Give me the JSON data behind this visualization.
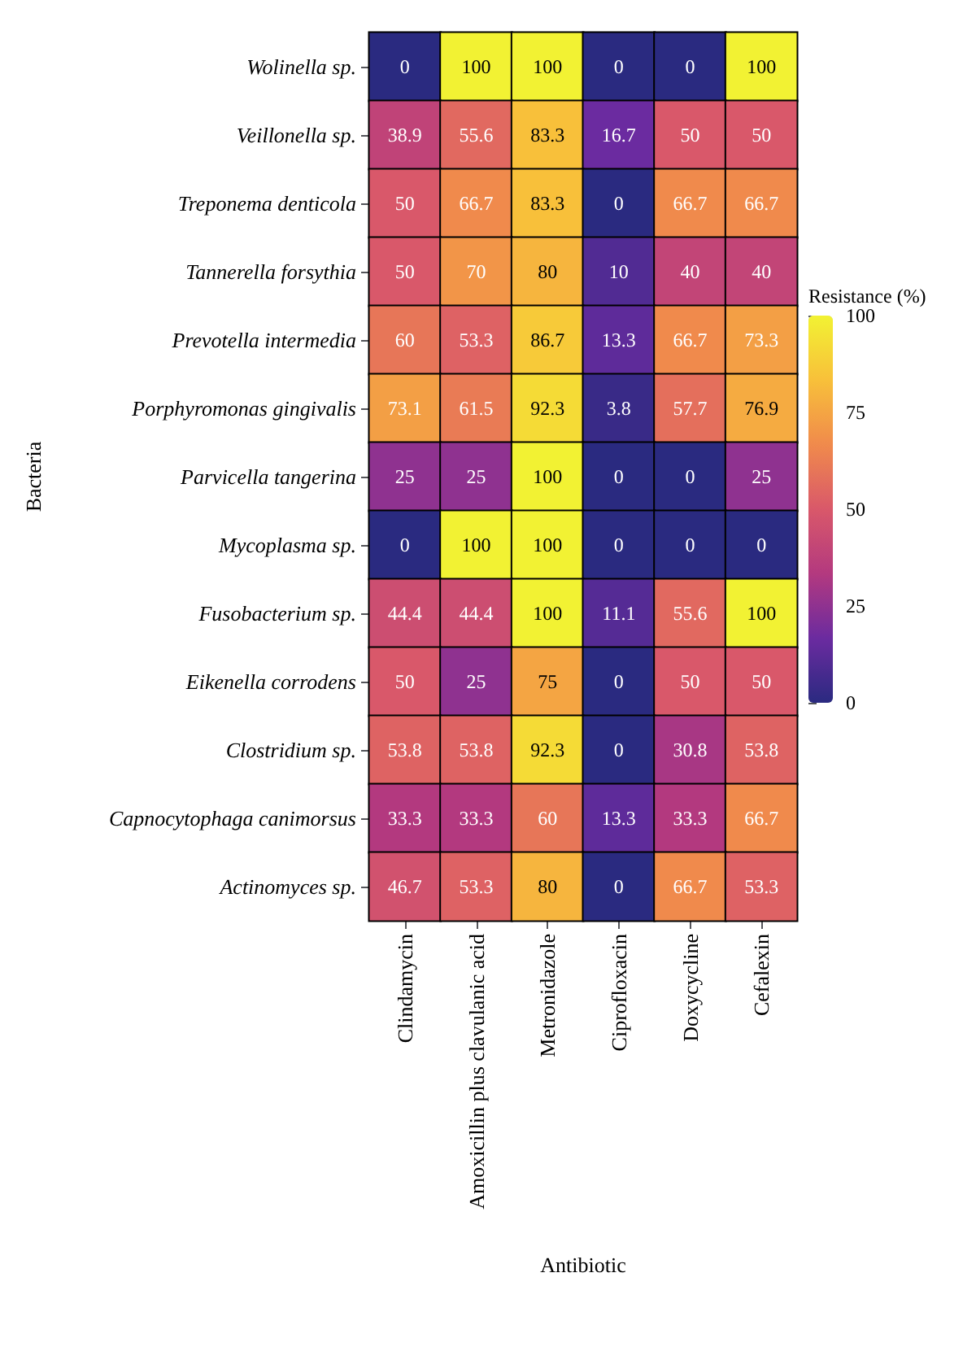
{
  "chart_data": {
    "type": "heatmap",
    "xlabel": "Antibiotic",
    "ylabel": "Bacteria",
    "clabel": "Resistance (%)",
    "categories": [
      "Clindamycin",
      "Amoxicillin plus clavulanic acid",
      "Metronidazole",
      "Ciprofloxacin",
      "Doxycycline",
      "Cefalexin"
    ],
    "y_categories": [
      "Wolinella sp.",
      "Veillonella sp.",
      "Treponema denticola",
      "Tannerella forsythia",
      "Prevotella intermedia",
      "Porphyromonas gingivalis",
      "Parvicella tangerina",
      "Mycoplasma sp.",
      "Fusobacterium sp.",
      "Eikenella corrodens",
      "Clostridium sp.",
      "Capnocytophaga canimorsus",
      "Actinomyces sp."
    ],
    "cells": [
      [
        0,
        100,
        100,
        0,
        0,
        100
      ],
      [
        38.9,
        55.6,
        83.3,
        16.7,
        50,
        50
      ],
      [
        50,
        66.7,
        83.3,
        0,
        66.7,
        66.7
      ],
      [
        50,
        70,
        80,
        10,
        40,
        40
      ],
      [
        60,
        53.3,
        86.7,
        13.3,
        66.7,
        73.3
      ],
      [
        73.1,
        61.5,
        92.3,
        3.8,
        57.7,
        76.9
      ],
      [
        25,
        25,
        100,
        0,
        0,
        25
      ],
      [
        0,
        100,
        100,
        0,
        0,
        0
      ],
      [
        44.4,
        44.4,
        100,
        11.1,
        55.6,
        100
      ],
      [
        50,
        25,
        75,
        0,
        50,
        50
      ],
      [
        53.8,
        53.8,
        92.3,
        0,
        30.8,
        53.8
      ],
      [
        33.3,
        33.3,
        60,
        13.3,
        33.3,
        66.7
      ],
      [
        46.7,
        53.3,
        80,
        0,
        66.7,
        53.3
      ]
    ],
    "clim": [
      0,
      100
    ],
    "cticks": [
      0,
      25,
      50,
      75,
      100
    ],
    "data_labels": true
  }
}
